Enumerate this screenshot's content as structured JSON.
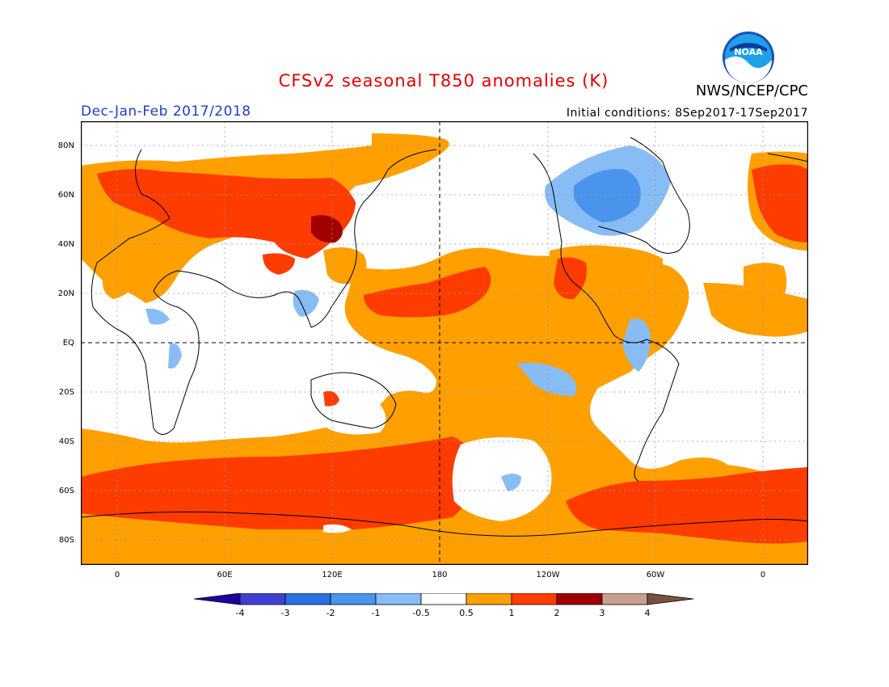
{
  "title": "CFSv2 seasonal T850 anomalies (K)",
  "season": "Dec-Jan-Feb 2017/2018",
  "initial_conditions": "Initial conditions: 8Sep2017-17Sep2017",
  "agency": "NWS/NCEP/CPC",
  "logo_text": "NOAA",
  "lat_labels": [
    "80N",
    "60N",
    "40N",
    "20N",
    "EQ",
    "20S",
    "40S",
    "60S",
    "80S"
  ],
  "lon_labels": [
    "0",
    "60E",
    "120E",
    "180",
    "120W",
    "60W",
    "0"
  ],
  "colorbar": {
    "labels": [
      "-4",
      "-3",
      "-2",
      "-1",
      "-0.5",
      "0.5",
      "1",
      "2",
      "3",
      "4"
    ],
    "colors": [
      "#2000a0",
      "#4040d0",
      "#2a70e0",
      "#4a94ee",
      "#88bcf4",
      "#ffffff",
      "#ffa000",
      "#ff3c00",
      "#a00000",
      "#c8a090",
      "#7a5040"
    ]
  },
  "colors": {
    "title": "#e00000",
    "season": "#1e3cc8",
    "orange": "#ffa000",
    "red": "#ff3c00",
    "darkred": "#a00000",
    "lightblue": "#88bcf4",
    "blue": "#4a94ee"
  }
}
